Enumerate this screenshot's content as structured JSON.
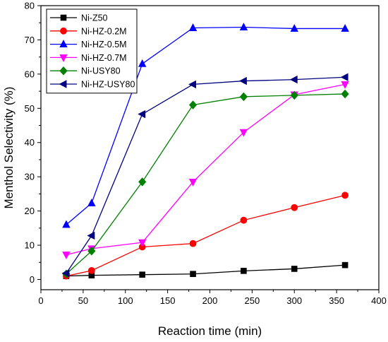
{
  "chart_data": {
    "type": "line",
    "title": "",
    "xlabel": "Reaction time (min)",
    "ylabel": "Menthol Selectivity (%)",
    "xlim": [
      0,
      400
    ],
    "ylim": [
      -3,
      80
    ],
    "xticks": [
      0,
      50,
      100,
      150,
      200,
      250,
      300,
      350,
      400
    ],
    "yticks": [
      0,
      10,
      20,
      30,
      40,
      50,
      60,
      70,
      80
    ],
    "grid": false,
    "legend": "top-left",
    "x": [
      30,
      60,
      120,
      180,
      240,
      300,
      360
    ],
    "series": [
      {
        "name": "Ni-Z50",
        "color": "#000000",
        "marker": "square",
        "values": [
          1.0,
          1.2,
          1.4,
          1.6,
          2.5,
          3.1,
          4.2
        ]
      },
      {
        "name": "Ni-HZ-0.2M",
        "color": "#ff0000",
        "marker": "circle",
        "values": [
          1.0,
          2.6,
          9.5,
          10.5,
          17.3,
          21.0,
          24.6
        ]
      },
      {
        "name": "Ni-HZ-0.5M",
        "color": "#0000ff",
        "marker": "triangle-up",
        "values": [
          16.0,
          22.3,
          63.0,
          73.5,
          73.7,
          73.3,
          73.3
        ]
      },
      {
        "name": "Ni-HZ-0.7M",
        "color": "#ff00ff",
        "marker": "triangle-down",
        "values": [
          7.2,
          9.0,
          10.8,
          28.5,
          43.0,
          54.0,
          57.0
        ]
      },
      {
        "name": "Ni-USY80",
        "color": "#008000",
        "marker": "diamond",
        "values": [
          1.6,
          8.3,
          28.5,
          51.0,
          53.4,
          53.8,
          54.2
        ]
      },
      {
        "name": "Ni-HZ-USY80",
        "color": "#000080",
        "marker": "triangle-left",
        "values": [
          1.8,
          12.8,
          48.3,
          57.0,
          58.0,
          58.4,
          59.1
        ]
      }
    ]
  }
}
